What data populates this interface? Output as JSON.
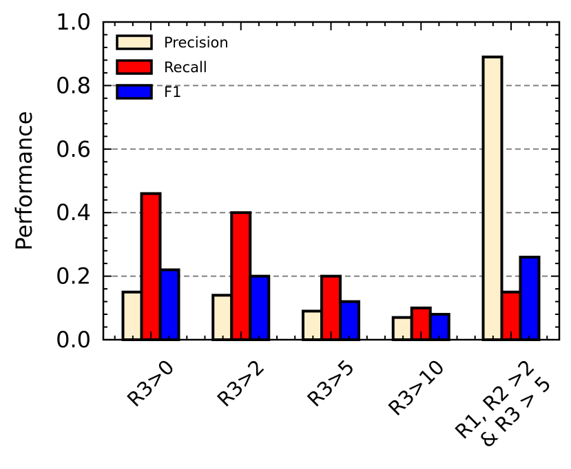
{
  "chart_data": {
    "type": "bar",
    "title": "",
    "xlabel": "",
    "ylabel": "Performance",
    "ylim": [
      0,
      1.0
    ],
    "yticks": [
      "0.0",
      "0.2",
      "0.4",
      "0.6",
      "0.8",
      "1.0"
    ],
    "grid": "horizontal-dashed",
    "legend_position": "top-left",
    "categories": [
      [
        "R3>0"
      ],
      [
        "R3>2"
      ],
      [
        "R3>5"
      ],
      [
        "R3>10"
      ],
      [
        "R1, R2 >2",
        "& R3 > 5"
      ]
    ],
    "series": [
      {
        "name": "Precision",
        "color": "#FFF0CC",
        "values": [
          0.15,
          0.14,
          0.09,
          0.07,
          0.89
        ]
      },
      {
        "name": "Recall",
        "color": "#FF0000",
        "values": [
          0.46,
          0.4,
          0.2,
          0.1,
          0.15
        ]
      },
      {
        "name": "F1",
        "color": "#0000FF",
        "values": [
          0.22,
          0.2,
          0.12,
          0.08,
          0.26
        ]
      }
    ]
  }
}
